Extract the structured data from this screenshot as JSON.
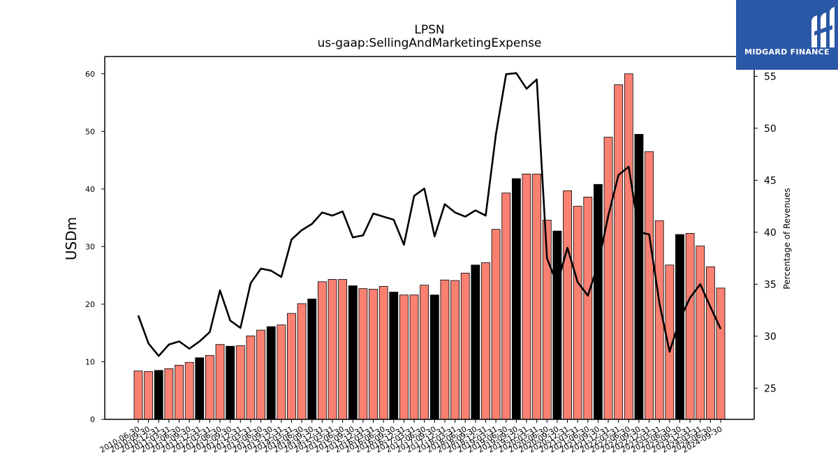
{
  "title": "LPSN",
  "subtitle": "us-gaap:SellingAndMarketingExpense",
  "brand": {
    "name": "MIDGARD FINANCE",
    "logo_icon": "midgard-logo-icon"
  },
  "colors": {
    "bar": "#fa8072",
    "bar_highlight": "#000000",
    "line": "#000000",
    "brand_bg": "#2b58a6"
  },
  "chart_data": {
    "type": "bar",
    "ylabel": "USDm",
    "y2label": "Percentage of Revenues",
    "ylim": [
      0,
      63
    ],
    "y2lim": [
      22,
      56.9
    ],
    "yticks": [
      0,
      10,
      20,
      30,
      40,
      50,
      60
    ],
    "y2ticks": [
      25,
      30,
      35,
      40,
      45,
      50,
      55
    ],
    "categories": [
      "2010-06-30",
      "2010-09-30",
      "2010-12-31",
      "2011-03-31",
      "2011-06-30",
      "2011-09-30",
      "2011-12-31",
      "2012-03-31",
      "2012-06-30",
      "2012-09-30",
      "2012-12-31",
      "2013-03-31",
      "2013-06-30",
      "2013-09-30",
      "2013-12-31",
      "2014-03-31",
      "2014-06-30",
      "2014-09-30",
      "2014-12-31",
      "2015-03-31",
      "2015-06-30",
      "2015-09-30",
      "2015-12-31",
      "2016-03-31",
      "2016-06-30",
      "2016-09-30",
      "2016-12-31",
      "2017-03-31",
      "2017-06-30",
      "2017-09-30",
      "2017-12-31",
      "2018-03-31",
      "2018-06-30",
      "2018-09-30",
      "2018-12-31",
      "2019-03-31",
      "2019-06-30",
      "2019-09-30",
      "2019-12-31",
      "2020-03-31",
      "2020-06-30",
      "2020-09-30",
      "2020-12-31",
      "2021-03-31",
      "2021-06-30",
      "2021-09-30",
      "2021-12-31",
      "2022-03-31",
      "2022-06-30",
      "2022-09-30",
      "2022-12-31",
      "2023-03-31",
      "2023-06-30",
      "2023-09-30",
      "2023-12-31",
      "2024-03-31",
      "2024-06-30",
      "2024-09-30"
    ],
    "tick_labels": [
      "2010-06-30",
      "2010-09-30",
      "2010-12-31",
      "2011-03-31",
      "2011-06-30",
      "2011-09-30",
      "2011-12-31",
      "2012-03-31",
      "2012-06-30",
      "2012-09-30",
      "2012-12-31",
      "2013-03-31",
      "2013-06-30",
      "2013-09-30",
      "2013-12-31",
      "2014-03-31",
      "2014-06-30",
      "2014-09-30",
      "2014-12-31",
      "2015-03-31",
      "2015-06-30",
      "2015-09-30",
      "2015-12-31",
      "2016-03-31",
      "2016-06-30",
      "2016-09-30",
      "2016-12-31",
      "2017-03-31",
      "2017-06-30",
      "2017-09-30",
      "2017-12-31",
      "2018-03-31",
      "2018-06-30",
      "2018-09-30",
      "2018-12-31",
      "2019-03-31",
      "2019-06-30",
      "2019-09-30",
      "2019-12-31",
      "2020-03-31",
      "2020-06-30",
      "2020-09-30",
      "2020-12-31",
      "2021-03-31",
      "2021-06-30",
      "2021-09-30",
      "2021-12-31",
      "2022-03-31",
      "2022-06-30",
      "2022-09-30",
      "2022-12-31",
      "2023-03-31",
      "2023-06-30",
      "2023-09-30",
      "2023-12-31",
      "2024-03-31",
      "2024-06-30",
      "2024-09-30"
    ],
    "series": [
      {
        "values": [
          8.4,
          8.3,
          8.5,
          8.8,
          9.4,
          9.9,
          10.7,
          11.1,
          13.0,
          12.7,
          12.8,
          14.5,
          15.5,
          16.1,
          16.4,
          18.4,
          20.1,
          20.9,
          23.9,
          24.3,
          24.3,
          23.2,
          22.7,
          22.6,
          23.1,
          22.1,
          21.6,
          21.6,
          23.3,
          21.6,
          24.2,
          24.1,
          25.4,
          26.8,
          27.2,
          33.0,
          39.3,
          41.8,
          42.6,
          42.6,
          34.6,
          32.7,
          39.7,
          37.0,
          38.6,
          40.8,
          49.0,
          58.1,
          60.0,
          49.5,
          46.5,
          34.5,
          26.8,
          32.1,
          32.3,
          30.1,
          26.5,
          22.8
        ]
      },
      {
        "axis": "right",
        "values": [
          32.0,
          29.3,
          28.1,
          29.2,
          29.5,
          28.8,
          29.5,
          30.4,
          34.4,
          31.5,
          30.8,
          35.1,
          36.5,
          36.3,
          35.7,
          39.3,
          40.2,
          40.8,
          41.9,
          41.6,
          42.0,
          39.5,
          39.7,
          41.8,
          41.5,
          41.2,
          38.8,
          43.5,
          44.2,
          39.6,
          42.7,
          41.9,
          41.5,
          42.1,
          41.6,
          49.4,
          55.2,
          55.3,
          53.8,
          54.7,
          37.5,
          35.0,
          38.5,
          35.2,
          33.9,
          36.9,
          41.6,
          45.5,
          46.3,
          40.0,
          39.8,
          33.2,
          28.5,
          31.6,
          33.7,
          35.0,
          32.8,
          30.7
        ]
      }
    ],
    "highlight_indices": [
      2,
      6,
      9,
      13,
      17,
      21,
      25,
      29,
      33,
      37,
      41,
      45,
      49,
      53
    ],
    "grid": false
  }
}
